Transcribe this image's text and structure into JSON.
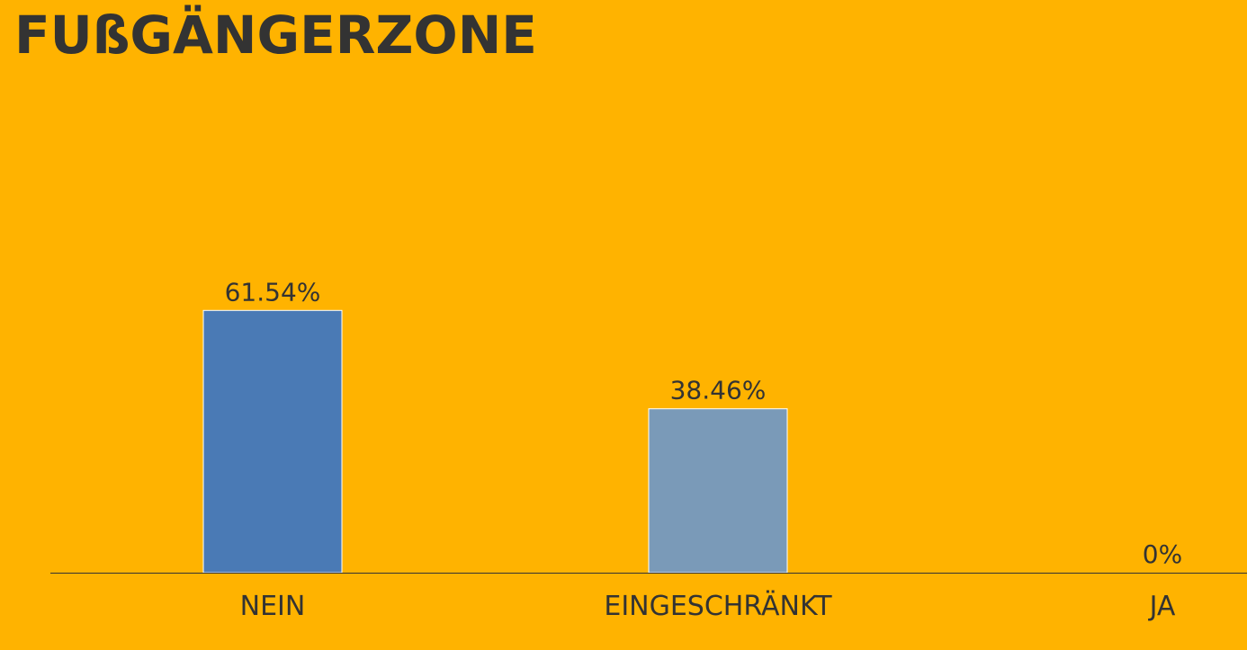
{
  "chart_data": {
    "type": "bar",
    "title": "FUßGÄNGERZONE",
    "categories": [
      "NEIN",
      "EINGESCHRÄNKT",
      "JA"
    ],
    "values": [
      61.54,
      38.46,
      0
    ],
    "value_labels": [
      "61.54%",
      "38.46%",
      "0%"
    ],
    "bar_colors": [
      "#4A7AB5",
      "#7A9AB8",
      "#7A9AB8"
    ],
    "ylim": [
      0,
      100
    ],
    "grid": false,
    "legend": "none"
  },
  "colors": {
    "background": "#FFB300",
    "text": "#333333",
    "axis": "#333333",
    "bar_border": "#FFFFFF"
  }
}
